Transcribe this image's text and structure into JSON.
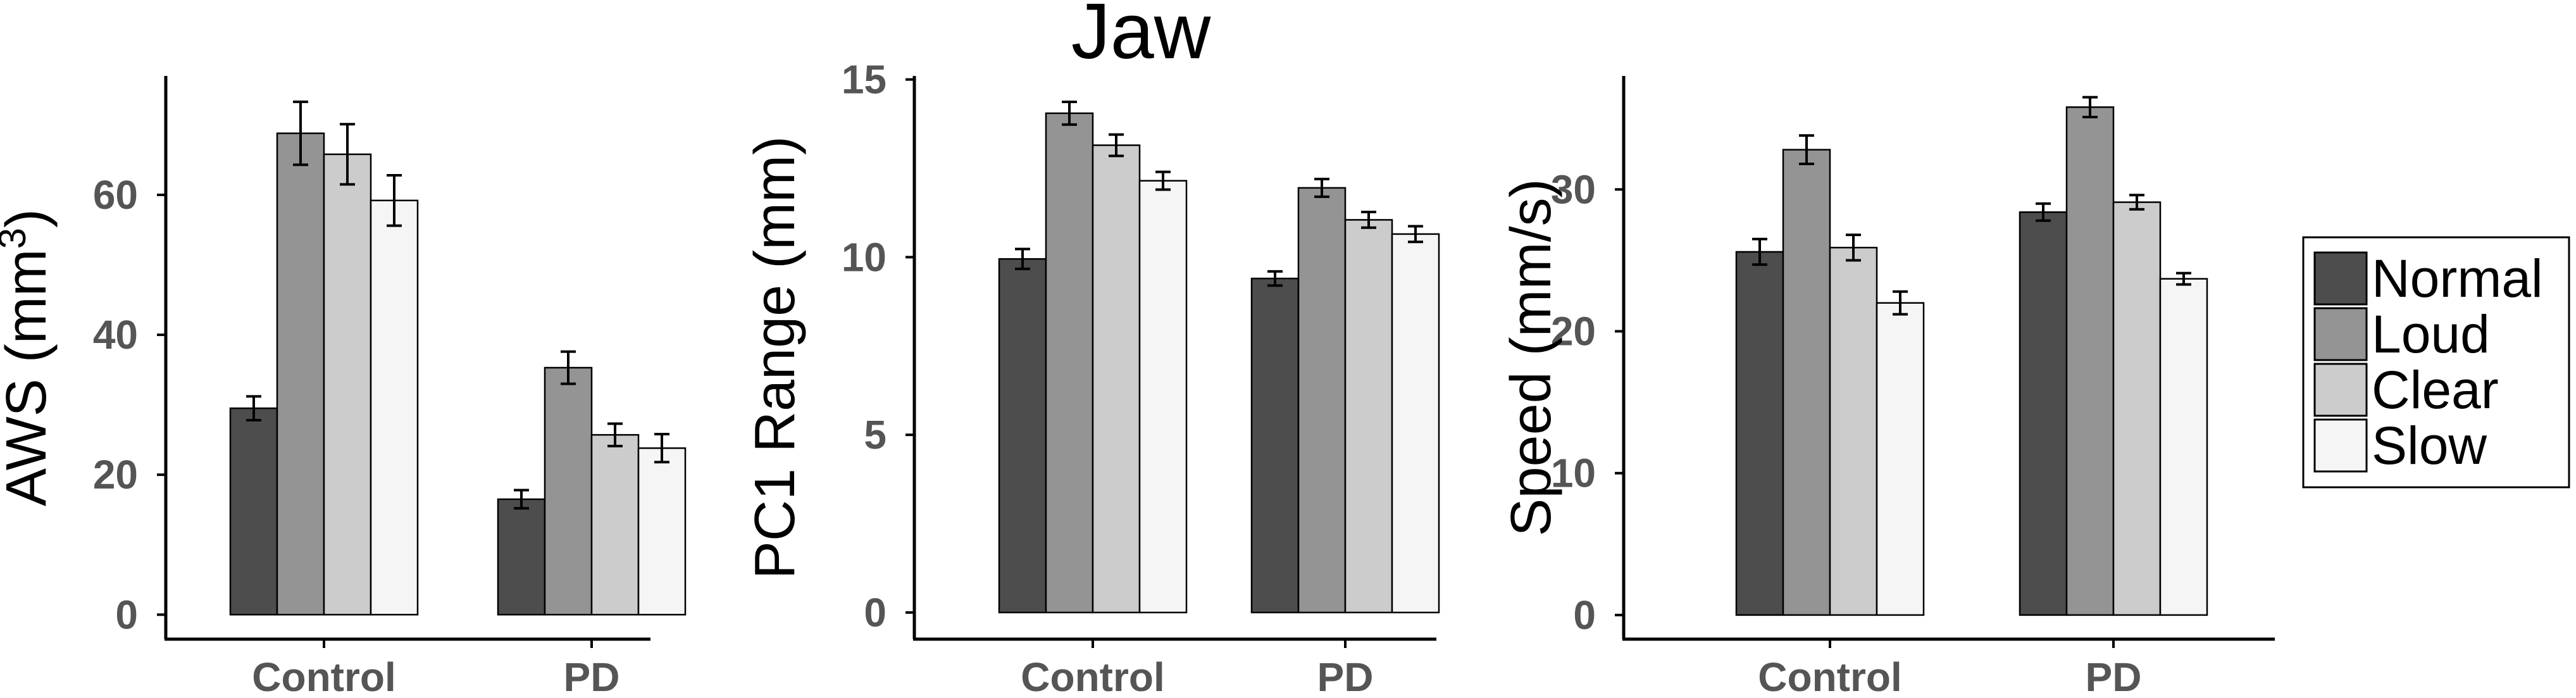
{
  "title": "Jaw",
  "legend": {
    "position": "right",
    "entries": [
      "Normal",
      "Loud",
      "Clear",
      "Slow"
    ]
  },
  "colors": {
    "Normal": "#4d4d4d",
    "Loud": "#949494",
    "Clear": "#cccccc",
    "Slow": "#f5f5f5",
    "tick_text": "#555555",
    "axis": "#000000"
  },
  "chart_data": [
    {
      "type": "bar",
      "ylabel_text": "AWS (mm",
      "ylabel_sup": "3",
      "ylabel_close": ")",
      "categories": [
        "Control",
        "PD"
      ],
      "ylim": [
        -3.5,
        77
      ],
      "yticks": [
        0,
        20,
        40,
        60
      ],
      "error_bars": true,
      "grid": false,
      "series": [
        {
          "name": "Normal",
          "values": [
            29.5,
            16.5
          ],
          "errors": [
            1.7,
            1.3
          ]
        },
        {
          "name": "Loud",
          "values": [
            68.8,
            35.3
          ],
          "errors": [
            4.5,
            2.3
          ]
        },
        {
          "name": "Clear",
          "values": [
            65.8,
            25.7
          ],
          "errors": [
            4.3,
            1.6
          ]
        },
        {
          "name": "Slow",
          "values": [
            59.2,
            23.8
          ],
          "errors": [
            3.6,
            2.0
          ]
        }
      ]
    },
    {
      "type": "bar",
      "ylabel": "PC1 Range (mm)",
      "categories": [
        "Control",
        "PD"
      ],
      "ylim": [
        -0.75,
        15.1
      ],
      "yticks": [
        0,
        5,
        10,
        15
      ],
      "error_bars": true,
      "grid": false,
      "series": [
        {
          "name": "Normal",
          "values": [
            9.95,
            9.4
          ],
          "errors": [
            0.28,
            0.2
          ]
        },
        {
          "name": "Loud",
          "values": [
            14.05,
            11.95
          ],
          "errors": [
            0.32,
            0.25
          ]
        },
        {
          "name": "Clear",
          "values": [
            13.15,
            11.05
          ],
          "errors": [
            0.3,
            0.22
          ]
        },
        {
          "name": "Slow",
          "values": [
            12.15,
            10.65
          ],
          "errors": [
            0.25,
            0.22
          ]
        }
      ]
    },
    {
      "type": "bar",
      "ylabel": "Speed (mm/s)",
      "categories": [
        "Control",
        "PD"
      ],
      "ylim": [
        -1.7,
        38
      ],
      "yticks": [
        0,
        10,
        20,
        30
      ],
      "error_bars": true,
      "grid": false,
      "series": [
        {
          "name": "Normal",
          "values": [
            25.6,
            28.4
          ],
          "errors": [
            0.9,
            0.6
          ]
        },
        {
          "name": "Loud",
          "values": [
            32.8,
            35.8
          ],
          "errors": [
            1.0,
            0.7
          ]
        },
        {
          "name": "Clear",
          "values": [
            25.9,
            29.1
          ],
          "errors": [
            0.9,
            0.5
          ]
        },
        {
          "name": "Slow",
          "values": [
            22.0,
            23.7
          ],
          "errors": [
            0.8,
            0.4
          ]
        }
      ]
    }
  ]
}
